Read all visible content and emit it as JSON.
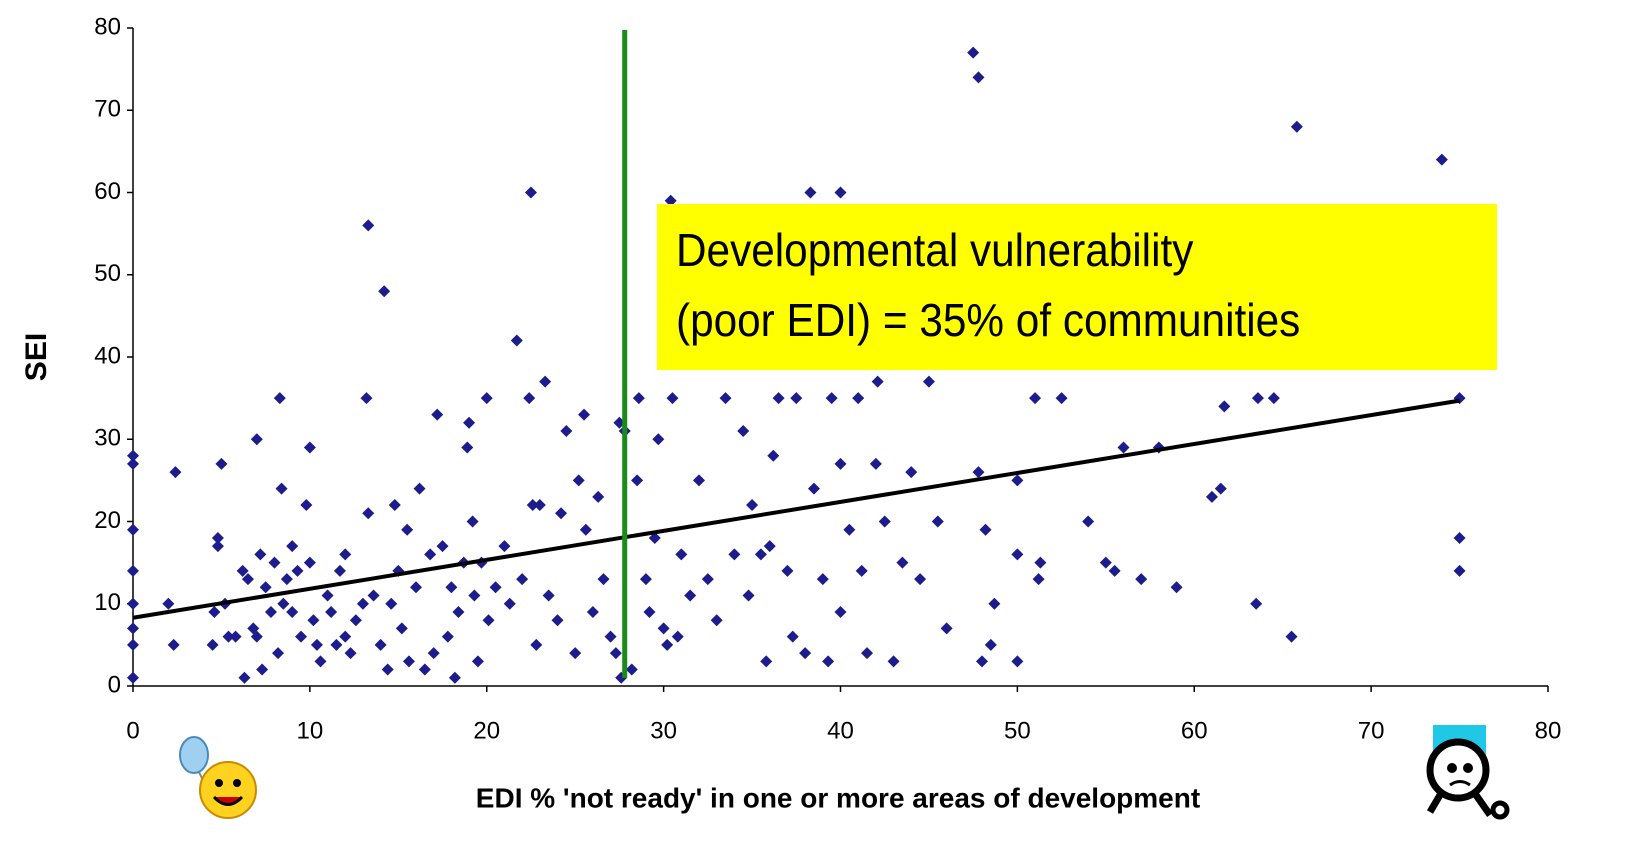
{
  "chart_data": {
    "type": "scatter",
    "xlabel": "EDI % 'not ready' in one or more areas of development",
    "ylabel": "SEI",
    "annotation": [
      "Developmental vulnerability",
      "(poor EDI) = 35% of communities"
    ],
    "xlim": [
      0,
      80
    ],
    "ylim": [
      0,
      80
    ],
    "xticks": [
      0,
      10,
      20,
      30,
      40,
      50,
      60,
      70,
      80
    ],
    "yticks": [
      0,
      10,
      20,
      30,
      40,
      50,
      60,
      70,
      80
    ],
    "threshold_x": 27.8,
    "threshold_color": "#1a8a1a",
    "trendline": {
      "color": "#000000",
      "x": [
        0,
        75
      ],
      "values": [
        8.3,
        34.7
      ]
    },
    "series": [
      {
        "color": "#1c1c8c",
        "x": [
          0,
          0,
          0,
          0,
          0,
          0,
          0,
          0,
          2,
          2.3,
          2.4,
          4.5,
          4.6,
          4.8,
          4.8,
          5,
          5.2,
          5.4,
          5.8,
          6.2,
          6.3,
          6.5,
          6.8,
          7,
          7,
          7.2,
          7.3,
          7.5,
          7.8,
          8,
          8.2,
          8.3,
          8.4,
          8.5,
          8.7,
          9,
          9,
          9.3,
          9.5,
          9.8,
          10,
          10,
          10.2,
          10.4,
          10.6,
          11,
          11.2,
          11.5,
          11.7,
          12,
          12,
          12.3,
          12.6,
          13,
          13.2,
          13.3,
          13.3,
          13.6,
          14,
          14.2,
          14.4,
          14.6,
          14.8,
          15,
          15.2,
          15.5,
          15.6,
          16,
          16.2,
          16.5,
          16.8,
          17,
          17.2,
          17.5,
          17.8,
          18,
          18.2,
          18.4,
          18.7,
          18.9,
          19,
          19.2,
          19.3,
          19.5,
          19.7,
          20,
          20.1,
          20.5,
          21,
          21.3,
          21.7,
          22,
          22.4,
          22.5,
          22.6,
          22.8,
          23,
          23.3,
          23.5,
          24,
          24.2,
          24.5,
          25,
          25.2,
          25.5,
          25.6,
          26,
          26.3,
          26.6,
          27,
          27.3,
          27.5,
          27.6,
          27.8,
          28.2,
          28.5,
          28.6,
          29,
          29.2,
          29.5,
          29.7,
          30,
          30.2,
          30.5,
          30.4,
          30.8,
          31,
          31.5,
          32,
          32.5,
          33,
          33.5,
          34,
          34.5,
          34.8,
          35,
          35.5,
          35.8,
          36,
          36.2,
          36.5,
          37,
          37.3,
          37.5,
          38,
          38.3,
          38.5,
          39,
          39.3,
          39.5,
          40,
          40,
          40,
          40.5,
          41,
          41.2,
          41.5,
          42,
          42.1,
          42.5,
          43,
          43.5,
          44,
          44.5,
          45,
          45.5,
          46,
          47.5,
          47.8,
          47.8,
          48,
          48.2,
          48.5,
          48.7,
          50,
          50,
          50,
          51,
          51.2,
          51.3,
          52.5,
          54,
          55,
          55.5,
          56,
          57,
          58,
          59,
          61,
          61.5,
          61.7,
          63.5,
          63.6,
          64.5,
          65.5,
          65.8,
          74,
          75,
          75,
          75
        ],
        "values": [
          28,
          27,
          19,
          14,
          10,
          7,
          5,
          1,
          10,
          5,
          26,
          5,
          9,
          18,
          17,
          27,
          10,
          6,
          6,
          14,
          1,
          13,
          7,
          30,
          6,
          16,
          2,
          12,
          9,
          15,
          4,
          35,
          24,
          10,
          13,
          9,
          17,
          14,
          6,
          22,
          15,
          29,
          8,
          5,
          3,
          11,
          9,
          5,
          14,
          16,
          6,
          4,
          8,
          10,
          35,
          56,
          21,
          11,
          5,
          48,
          2,
          10,
          22,
          14,
          7,
          19,
          3,
          12,
          24,
          2,
          16,
          4,
          33,
          17,
          6,
          12,
          1,
          9,
          15,
          29,
          32,
          20,
          11,
          3,
          15,
          35,
          8,
          12,
          17,
          10,
          42,
          13,
          35,
          60,
          22,
          5,
          22,
          37,
          11,
          8,
          21,
          31,
          4,
          25,
          33,
          19,
          9,
          23,
          13,
          6,
          4,
          32,
          1,
          31,
          2,
          25,
          35,
          13,
          9,
          18,
          30,
          7,
          5,
          35,
          59,
          6,
          16,
          11,
          25,
          13,
          8,
          35,
          16,
          31,
          11,
          22,
          16,
          3,
          17,
          28,
          35,
          14,
          6,
          35,
          4,
          60,
          24,
          13,
          3,
          35,
          60,
          27,
          9,
          19,
          35,
          14,
          4,
          27,
          37,
          20,
          3,
          15,
          26,
          13,
          37,
          20,
          7,
          77,
          74,
          26,
          3,
          19,
          5,
          10,
          25,
          16,
          3,
          35,
          13,
          15,
          35,
          20,
          15,
          14,
          29,
          13,
          29,
          12,
          23,
          24,
          34,
          10,
          35,
          35,
          6,
          68,
          64,
          35,
          18,
          14
        ]
      }
    ]
  }
}
